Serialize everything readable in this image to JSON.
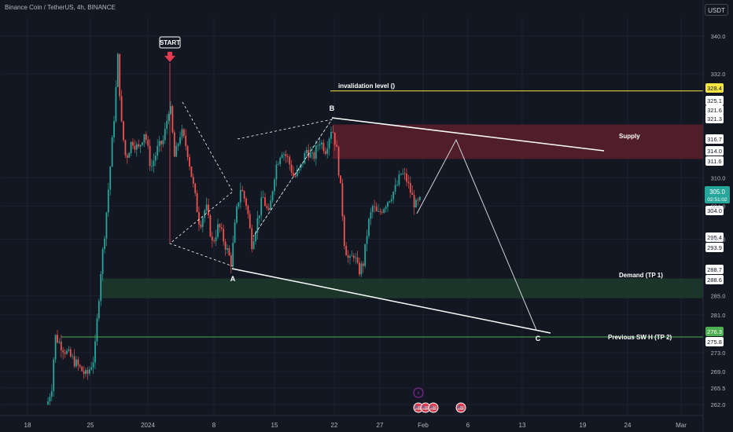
{
  "symbol_title": "Binance Coin / TetherUS, 4h, BINANCE",
  "currency_label": "USDT",
  "colors": {
    "background": "#131722",
    "grid": "#1c2030",
    "axis_text": "#b2b5be",
    "candle_up": "#26a69a",
    "candle_down": "#ef5350",
    "supply_zone": "#5c1f2c",
    "demand_zone": "#1d3b2b",
    "invalidation_line": "#f5e642",
    "tp2_line": "#4caf50",
    "current_price": "#26a69a",
    "start_marker": "#e53950",
    "event_icon_purple": "#9c27b0",
    "event_icon_red": "#e53950"
  },
  "chart_data": {
    "type": "candlestick",
    "x_ticks": [
      "18",
      "25",
      "2024",
      "8",
      "15",
      "22",
      "27",
      "Feb",
      "6",
      "13",
      "19",
      "24",
      "Mar"
    ],
    "y_ticks": [
      340.0,
      332.0,
      310.0,
      304.0,
      297.0,
      285.0,
      281.0,
      273.0,
      269.0,
      265.5,
      262.0
    ],
    "ylim": [
      260.0,
      344.0
    ],
    "price_labels": [
      {
        "value": "328.4",
        "kind": "invalidation"
      },
      {
        "value": "325.1",
        "kind": "level"
      },
      {
        "value": "321.6",
        "kind": "level"
      },
      {
        "value": "321.3",
        "kind": "level"
      },
      {
        "value": "316.7",
        "kind": "level"
      },
      {
        "value": "314.0",
        "kind": "level"
      },
      {
        "value": "311.6",
        "kind": "level"
      },
      {
        "value": "304.0",
        "kind": "level"
      },
      {
        "value": "295.4",
        "kind": "level"
      },
      {
        "value": "293.9",
        "kind": "level"
      },
      {
        "value": "288.7",
        "kind": "level"
      },
      {
        "value": "288.6",
        "kind": "level"
      },
      {
        "value": "276.3",
        "kind": "tp2"
      },
      {
        "value": "275.8",
        "kind": "level"
      }
    ],
    "current_price": {
      "value": "305.0",
      "countdown": "02:51:02"
    },
    "zones": [
      {
        "name": "Supply",
        "top": 321.3,
        "bottom": 314.0
      },
      {
        "name": "Demand (TP 1)",
        "top": 288.7,
        "bottom": 284.5
      }
    ],
    "lines": [
      {
        "name": "invalidation level ()",
        "value": 328.4
      },
      {
        "name": "Previous SW H (TP 2)",
        "value": 276.3
      }
    ],
    "wave_points": [
      {
        "label": "A",
        "value": 288.6
      },
      {
        "label": "B",
        "value": 321.6
      },
      {
        "label": "C",
        "value": 275.8
      }
    ],
    "start_marker": {
      "label": "START",
      "value": 332.5
    },
    "events": [
      "⚡",
      "🇺🇸",
      "🇺🇸",
      "🇺🇸",
      "🇺🇸"
    ]
  }
}
